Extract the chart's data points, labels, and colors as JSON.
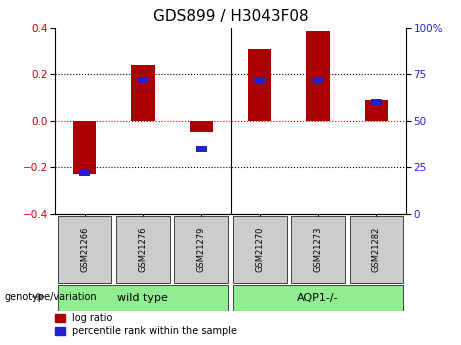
{
  "title": "GDS899 / H3043F08",
  "samples": [
    "GSM21266",
    "GSM21276",
    "GSM21279",
    "GSM21270",
    "GSM21273",
    "GSM21282"
  ],
  "log_ratios": [
    -0.23,
    0.24,
    -0.05,
    0.31,
    0.385,
    0.09
  ],
  "percentile_ranks": [
    22,
    72,
    35,
    72,
    72,
    60
  ],
  "group_split": 3,
  "group_labels": [
    "wild type",
    "AQP1-/-"
  ],
  "group_color": "#90EE90",
  "ylim_left": [
    -0.4,
    0.4
  ],
  "ylim_right": [
    0,
    100
  ],
  "yticks_left": [
    -0.4,
    -0.2,
    0,
    0.2,
    0.4
  ],
  "yticks_right": [
    0,
    25,
    50,
    75,
    100
  ],
  "bar_color_red": "#AA0000",
  "bar_color_blue": "#2222CC",
  "bar_width": 0.4,
  "blue_bar_width": 0.18,
  "blue_bar_height": 0.025,
  "background_color": "#ffffff",
  "label_color_red": "#CC0000",
  "label_color_blue": "#2222CC",
  "genotype_label": "genotype/variation",
  "legend_red": "log ratio",
  "legend_blue": "percentile rank within the sample",
  "tick_label_bg": "#CCCCCC",
  "zero_line_color": "#CC0000",
  "dotted_line_color": "#000000",
  "separator_color": "#000000"
}
